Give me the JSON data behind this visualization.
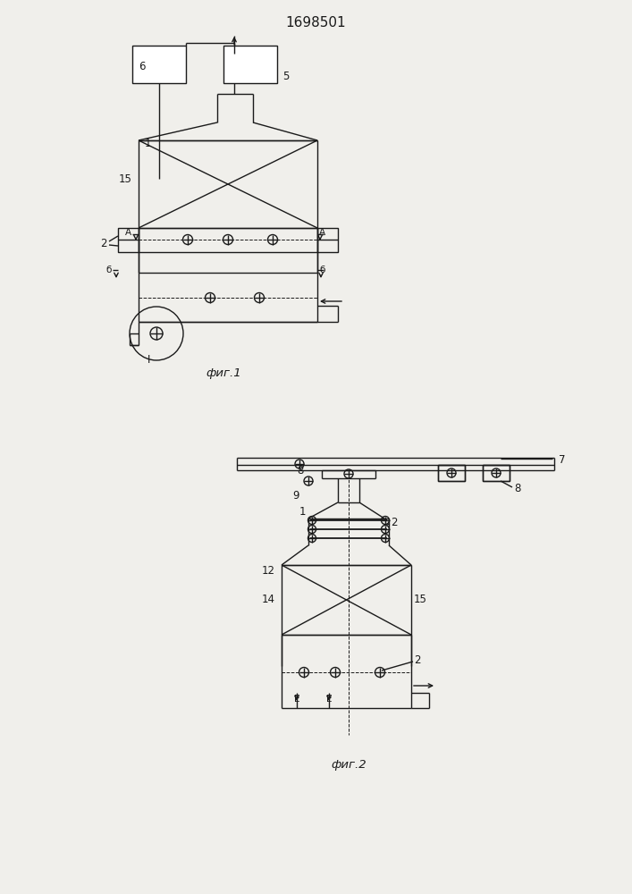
{
  "title": "1698501",
  "fig1_label": "фиг.1",
  "fig2_label": "фиг.2",
  "bg_color": "#f0efeb",
  "line_color": "#1a1a1a",
  "line_width": 1.0
}
